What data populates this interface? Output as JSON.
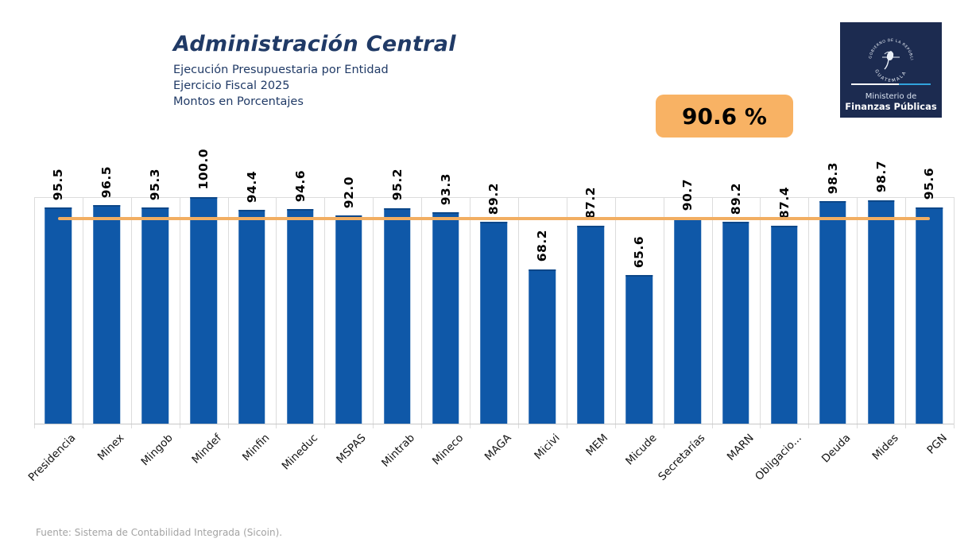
{
  "header": {
    "title": "Administración Central",
    "subtitle_lines": [
      "Ejecución Presupuestaria por Entidad",
      "Ejercicio Fiscal 2025",
      "Montos en Porcentajes"
    ]
  },
  "average_badge": {
    "value": "90.6 %"
  },
  "logo": {
    "seal_top": "GOBIERNO DE LA REPÚBLICA",
    "seal_bottom": "GUATEMALA",
    "ministry_line1": "Ministerio de",
    "ministry_line2": "Finanzas Públicas"
  },
  "colors": {
    "bar_blue": "#0F58A8",
    "average_orange": "#F2AE62",
    "badge_orange": "#F8B264",
    "title_navy": "#203A66",
    "logo_navy": "#1C2B50",
    "gridline_gray": "#DCDCDC"
  },
  "chart_data": {
    "type": "bar",
    "title": "Administración Central — Ejecución Presupuestaria por Entidad, Ejercicio Fiscal 2025 (Montos en Porcentajes)",
    "categories": [
      "Presidencia",
      "Minex",
      "Mingob",
      "Mindef",
      "Minfin",
      "Mineduc",
      "MSPAS",
      "Mintrab",
      "Mineco",
      "MAGA",
      "Micivi",
      "MEM",
      "Micude",
      "Secretarías",
      "MARN",
      "Obligacio...",
      "Deuda",
      "Mides",
      "PGN"
    ],
    "values": [
      95.5,
      96.5,
      95.3,
      100.0,
      94.4,
      94.6,
      92.0,
      95.2,
      93.3,
      89.2,
      68.2,
      87.2,
      65.6,
      90.7,
      89.2,
      87.4,
      98.3,
      98.7,
      95.6
    ],
    "average": 90.6,
    "xlabel": "",
    "ylabel": "",
    "ylim": [
      0,
      100
    ],
    "y_axis_labels_visible": false,
    "grid": "vertical",
    "value_label_rotation": -90,
    "category_label_rotation": -45,
    "legend": "none",
    "average_line": {
      "value": 90.6,
      "style": "solid",
      "spans": "first-bar-center-to-last-bar-center"
    }
  },
  "footer": {
    "source": "Fuente: Sistema de Contabilidad Integrada (Sicoin)."
  }
}
